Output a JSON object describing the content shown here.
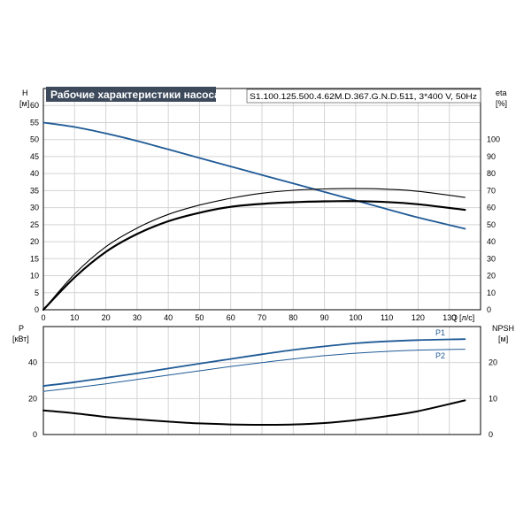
{
  "header": {
    "title": "Рабочие характеристики насоса",
    "model": "S1.100.125.500.4.62M.D.367.G.N.D.511, 3*400 V, 50Hz"
  },
  "colors": {
    "title_bg": "#3d4a5c",
    "title_text": "#ffffff",
    "grid": "#d4d4d4",
    "axis": "#000000",
    "blue": "#1f5a96",
    "black": "#000000"
  },
  "chart_data": [
    {
      "id": "head-efficiency",
      "type": "line",
      "x_label": "Q",
      "x_unit": "[л/с]",
      "xlim": [
        0,
        140
      ],
      "x_ticks": [
        0,
        10,
        20,
        30,
        40,
        50,
        60,
        70,
        80,
        90,
        100,
        110,
        120,
        130
      ],
      "left_axis": {
        "label": "H",
        "unit": "[м]",
        "lim": [
          0,
          65
        ],
        "ticks": [
          0,
          5,
          10,
          15,
          20,
          25,
          30,
          35,
          40,
          45,
          50,
          55,
          60
        ]
      },
      "right_axis": {
        "label": "eta",
        "unit": "[%]",
        "lim": [
          0,
          130
        ],
        "ticks": [
          0,
          10,
          20,
          30,
          40,
          50,
          60,
          70,
          80,
          90,
          100
        ]
      },
      "grid": true,
      "series": [
        {
          "key": "H",
          "axis": "left",
          "color": "blue",
          "width": 1.8,
          "x": [
            0,
            10,
            20,
            30,
            40,
            50,
            60,
            70,
            80,
            90,
            100,
            110,
            120,
            135
          ],
          "y": [
            55,
            53.7,
            51.8,
            49.6,
            47.1,
            44.6,
            42.1,
            39.6,
            37.1,
            34.6,
            32.1,
            29.6,
            27.1,
            23.8
          ]
        },
        {
          "key": "eta_thin",
          "axis": "right",
          "color": "black",
          "width": 1.1,
          "x": [
            0,
            10,
            20,
            30,
            40,
            50,
            60,
            70,
            80,
            90,
            100,
            110,
            120,
            135
          ],
          "y": [
            0,
            21,
            37,
            48,
            56,
            61.5,
            65.5,
            68.5,
            70.2,
            71,
            71.2,
            70.8,
            69.6,
            66
          ]
        },
        {
          "key": "eta_thick",
          "axis": "right",
          "color": "black",
          "width": 2.2,
          "x": [
            0,
            10,
            20,
            30,
            40,
            50,
            60,
            70,
            80,
            90,
            100,
            110,
            120,
            135
          ],
          "y": [
            0,
            19,
            34,
            44.5,
            52,
            57,
            60.5,
            62.2,
            63.2,
            63.7,
            63.8,
            63.3,
            62,
            58.7
          ]
        }
      ]
    },
    {
      "id": "power-npsh",
      "type": "line",
      "xlim": [
        0,
        140
      ],
      "left_axis": {
        "label": "P",
        "unit": "[кВт]",
        "lim": [
          0,
          60
        ],
        "ticks": [
          0,
          20,
          40
        ]
      },
      "right_axis": {
        "label": "NPSH",
        "unit": "[м]",
        "lim": [
          0,
          30
        ],
        "ticks": [
          0,
          10,
          20
        ]
      },
      "grid": true,
      "series": [
        {
          "key": "P1",
          "name": "P1",
          "axis": "left",
          "color": "blue",
          "width": 1.8,
          "x": [
            0,
            10,
            20,
            30,
            40,
            50,
            60,
            70,
            80,
            90,
            100,
            110,
            120,
            135
          ],
          "y": [
            27,
            29.1,
            31.5,
            34,
            36.7,
            39.4,
            42,
            44.6,
            47,
            49,
            50.7,
            51.8,
            52.5,
            53
          ]
        },
        {
          "key": "P2",
          "name": "P2",
          "axis": "left",
          "color": "blue",
          "width": 1.0,
          "x": [
            0,
            10,
            20,
            30,
            40,
            50,
            60,
            70,
            80,
            90,
            100,
            110,
            120,
            135
          ],
          "y": [
            24,
            26,
            28.2,
            30.6,
            33,
            35.4,
            37.8,
            40,
            42,
            43.8,
            45.2,
            46.2,
            46.9,
            47.4
          ]
        },
        {
          "key": "NPSH",
          "axis": "right",
          "color": "black",
          "width": 2.0,
          "x": [
            0,
            10,
            20,
            30,
            40,
            50,
            60,
            70,
            80,
            90,
            100,
            110,
            120,
            135
          ],
          "y": [
            6.7,
            5.9,
            4.9,
            4.2,
            3.6,
            3.1,
            2.8,
            2.7,
            2.8,
            3.2,
            4.0,
            5.1,
            6.5,
            9.5
          ]
        }
      ]
    }
  ]
}
